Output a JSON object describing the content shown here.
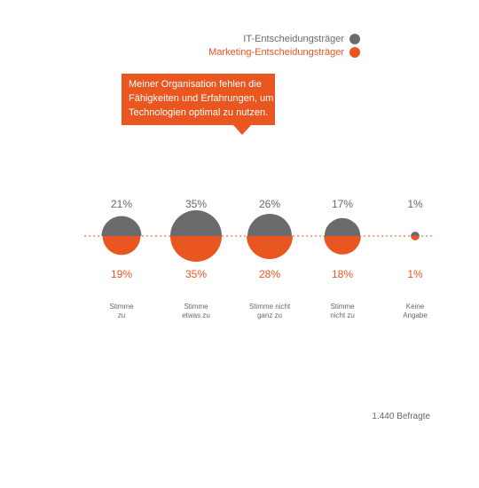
{
  "legend": {
    "it": "IT-Entscheidungsträger",
    "marketing": "Marketing-Entscheidungsträger"
  },
  "colors": {
    "it": "#6b6a6c",
    "marketing": "#e9561f",
    "text_gray": "#666666"
  },
  "callout": {
    "text": "Meiner Organisation fehlen die Fähigkeiten und Erfahrungen, um Technologien optimal zu nutzen."
  },
  "footer": {
    "respondents": "1.440 Befragte"
  },
  "chart_data": {
    "type": "bubble",
    "categories": [
      [
        "Stimme",
        "zu"
      ],
      [
        "Stimme",
        "etwas zu"
      ],
      [
        "Stimme nicht",
        "ganz zu"
      ],
      [
        "Stimme",
        "nicht zu"
      ],
      [
        "Keine",
        "Angabe"
      ]
    ],
    "series": [
      {
        "name": "IT-Entscheidungsträger",
        "values": [
          21,
          35,
          26,
          17,
          1
        ],
        "labels": [
          "21%",
          "35%",
          "26%",
          "17%",
          "1%"
        ]
      },
      {
        "name": "Marketing-Entscheidungsträger",
        "values": [
          19,
          35,
          28,
          18,
          1
        ],
        "labels": [
          "19%",
          "35%",
          "28%",
          "18%",
          "1%"
        ]
      }
    ]
  }
}
